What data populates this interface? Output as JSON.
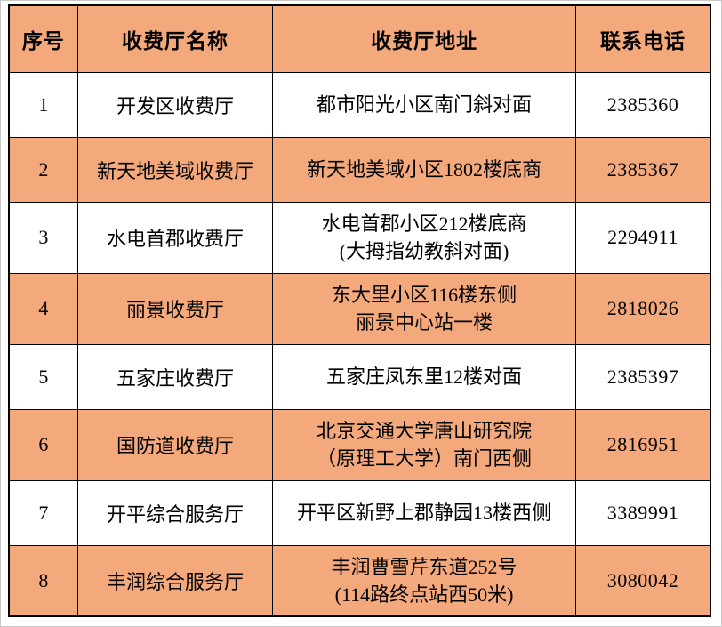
{
  "colors": {
    "shaded_bg": "#F4A97C",
    "plain_bg": "#FFFFFF",
    "border": "#000000",
    "text": "#000000"
  },
  "table": {
    "columns": [
      {
        "key": "no",
        "label": "序号"
      },
      {
        "key": "name",
        "label": "收费厅名称"
      },
      {
        "key": "address",
        "label": "收费厅地址"
      },
      {
        "key": "phone",
        "label": "联系电话"
      }
    ],
    "rows": [
      {
        "no": "1",
        "name": "开发区收费厅",
        "address": [
          "都市阳光小区南门斜对面"
        ],
        "phone": "2385360"
      },
      {
        "no": "2",
        "name": "新天地美域收费厅",
        "address": [
          "新天地美域小区1802楼底商"
        ],
        "phone": "2385367"
      },
      {
        "no": "3",
        "name": "水电首郡收费厅",
        "address": [
          "水电首郡小区212楼底商",
          "(大拇指幼教斜对面)"
        ],
        "phone": "2294911"
      },
      {
        "no": "4",
        "name": "丽景收费厅",
        "address": [
          "东大里小区116楼东侧",
          "丽景中心站一楼"
        ],
        "phone": "2818026"
      },
      {
        "no": "5",
        "name": "五家庄收费厅",
        "address": [
          "五家庄凤东里12楼对面"
        ],
        "phone": "2385397"
      },
      {
        "no": "6",
        "name": "国防道收费厅",
        "address": [
          "北京交通大学唐山研究院",
          "（原理工大学）南门西侧"
        ],
        "phone": "2816951"
      },
      {
        "no": "7",
        "name": "开平综合服务厅",
        "address": [
          "开平区新野上郡静园13楼西侧"
        ],
        "phone": "3389991"
      },
      {
        "no": "8",
        "name": "丰润综合服务厅",
        "address": [
          "丰润曹雪芹东道252号",
          "(114路终点站西50米)"
        ],
        "phone": "3080042"
      }
    ]
  }
}
